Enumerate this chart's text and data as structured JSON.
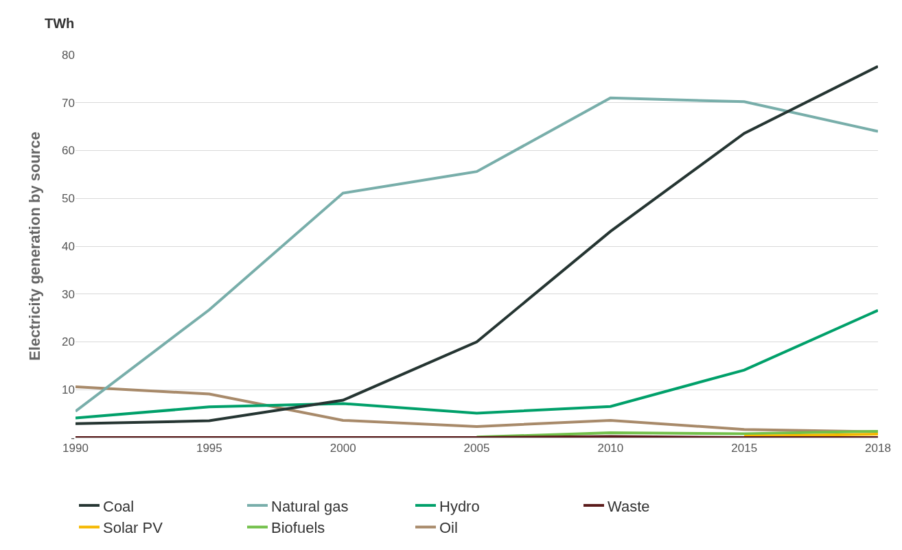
{
  "chart_data": {
    "type": "line",
    "ylabel": "Electricity generation by source",
    "annotations": [
      "TWh"
    ],
    "categories": [
      "1990",
      "1995",
      "2000",
      "2005",
      "2010",
      "2015",
      "2018"
    ],
    "series": [
      {
        "name": "Coal",
        "color": "#253532",
        "values": [
          2.9,
          3.5,
          7.8,
          20,
          43.1,
          63.6,
          77.6
        ]
      },
      {
        "name": "Natural gas",
        "color": "#78aeaa",
        "values": [
          5.5,
          26.7,
          51.1,
          55.6,
          71,
          70.2,
          64
        ]
      },
      {
        "name": "Hydro",
        "color": "#00a06a",
        "values": [
          4.1,
          6.4,
          7.1,
          5.1,
          6.5,
          14.1,
          26.6
        ]
      },
      {
        "name": "Waste",
        "color": "#5a1a1a",
        "values": [
          0,
          0,
          0,
          0,
          0.2,
          0,
          0
        ]
      },
      {
        "name": "Solar PV",
        "color": "#f5b800",
        "values": [
          null,
          null,
          null,
          null,
          null,
          0.3,
          0.7
        ]
      },
      {
        "name": "Biofuels",
        "color": "#72c04a",
        "values": [
          null,
          null,
          null,
          0.1,
          1,
          0.8,
          1.3
        ]
      },
      {
        "name": "Oil",
        "color": "#a88a6a",
        "values": [
          10.6,
          9.1,
          3.6,
          2.3,
          3.6,
          1.7,
          1.2
        ]
      }
    ],
    "ylim": [
      0,
      80
    ],
    "yticks": [
      {
        "value": 0,
        "label": "-"
      },
      10,
      20,
      30,
      40,
      50,
      60,
      70,
      80
    ],
    "grid": "y",
    "legend": "bottom",
    "marker": "none",
    "line_style": "solid"
  }
}
